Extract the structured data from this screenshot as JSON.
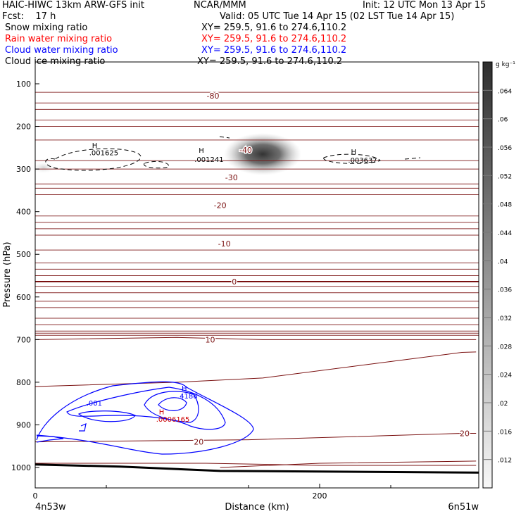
{
  "header": {
    "model": "HAIC-HIWC 13km ARW-GFS init",
    "org": "NCAR/MMM",
    "init": "Init: 12 UTC Mon 13 Apr 15",
    "fcst": "Fcst:    17 h",
    "valid": "Valid: 05 UTC Tue 14 Apr 15 (02 LST Tue 14 Apr 15)"
  },
  "fields": [
    {
      "name": "Snow mixing ratio",
      "xy": "XY= 259.5, 91.6 to 274.6,110.2",
      "color": "#000000"
    },
    {
      "name": "Rain water mixing ratio",
      "xy": "XY= 259.5, 91.6 to 274.6,110.2",
      "color": "#ff0000"
    },
    {
      "name": "Cloud water mixing ratio",
      "xy": "XY= 259.5, 91.6 to 274.6,110.2",
      "color": "#0000ff"
    },
    {
      "name": "Cloud ice mixing ratio",
      "xy": "XY= 259.5, 91.6 to 274.6,110.2",
      "color": "#000000"
    }
  ],
  "chart_data": {
    "type": "heatmap",
    "xlabel": "Distance (km)",
    "ylabel": "Pressure (hPa)",
    "xlim": [
      0,
      310
    ],
    "ylim": [
      1050,
      50
    ],
    "x_ticks": [
      0,
      200
    ],
    "y_ticks": [
      100,
      200,
      300,
      400,
      500,
      600,
      700,
      800,
      900,
      1000
    ],
    "x_endpoint_labels": [
      "4n53w",
      "6n51w"
    ],
    "colorbar": {
      "units": "g kg⁻¹",
      "ticks": [
        ".064",
        ".06",
        ".056",
        ".052",
        ".048",
        ".044",
        ".04",
        ".036",
        ".032",
        ".028",
        ".024",
        ".02",
        ".016",
        ".012"
      ],
      "min": 0.008,
      "max": 0.068
    },
    "snow_maxima": [
      {
        "x": 160,
        "p": 265,
        "value": 0.066
      }
    ],
    "temperature_contours": [
      {
        "label": "-80",
        "p": 128,
        "label_x": 125
      },
      {
        "label": "-40",
        "p": 255,
        "label_x": 148
      },
      {
        "label": "-30",
        "p": 320,
        "label_x": 138
      },
      {
        "label": "-20",
        "p": 385,
        "label_x": 130
      },
      {
        "label": "-10",
        "p": 475,
        "label_x": 133
      },
      {
        "label": "0",
        "p": 564,
        "label_x": 140
      },
      {
        "label": "10",
        "p": 700,
        "label_x": 123
      },
      {
        "label": "20",
        "p": 940,
        "label_x": 115
      },
      {
        "label": "20",
        "p": 920,
        "label_x": 302
      }
    ],
    "annotations": [
      {
        "text": "H",
        "x": 40,
        "p": 250,
        "color": "#000000"
      },
      {
        "text": ".001625",
        "x": 38,
        "p": 268,
        "color": "#000000"
      },
      {
        "text": "H",
        "x": 115,
        "p": 262,
        "color": "#000000"
      },
      {
        "text": ".001241",
        "x": 112,
        "p": 283,
        "color": "#000000"
      },
      {
        "text": "H",
        "x": 222,
        "p": 265,
        "color": "#000000"
      },
      {
        "text": ".003637",
        "x": 220,
        "p": 285,
        "color": "#000000"
      },
      {
        "text": "H",
        "x": 103,
        "p": 820,
        "color": "#0000ff"
      },
      {
        "text": ".4186",
        "x": 100,
        "p": 838,
        "color": "#0000ff"
      },
      {
        "text": ".001",
        "x": 36,
        "p": 855,
        "color": "#0000ff"
      },
      {
        "text": "H",
        "x": 87,
        "p": 875,
        "color": "#cc0000"
      },
      {
        "text": ".0006165",
        "x": 85,
        "p": 893,
        "color": "#cc0000"
      }
    ]
  }
}
